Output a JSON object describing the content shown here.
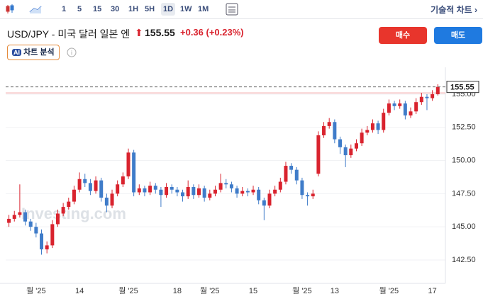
{
  "toolbar": {
    "intervals": [
      "1",
      "5",
      "15",
      "30",
      "1H",
      "5H",
      "1D",
      "1W",
      "1M"
    ],
    "selected": "1D",
    "right_link": "기술적 차트"
  },
  "header": {
    "symbol": "USD/JPY - 미국 달러 일본 엔",
    "price": 155.55,
    "change": "+0.36 (+0.23%)",
    "buy": "매수",
    "sell": "매도",
    "ai_badge": "AI",
    "ai_label": "차트 분석"
  },
  "chart_data": {
    "type": "candlestick",
    "watermark": "Investing.com",
    "up_color": "#d9232e",
    "down_color": "#3f7cc9",
    "open": [
      145.3,
      145.6,
      145.9,
      146.1,
      145.4,
      145.0,
      144.5,
      143.3,
      143.6,
      145.2,
      146.0,
      146.5,
      146.9,
      147.8,
      148.6,
      148.3,
      147.7,
      148.5,
      147.2,
      146.6,
      147.5,
      148.2,
      148.8,
      150.6,
      147.6,
      147.9,
      147.6,
      148.1,
      147.8,
      147.4,
      148.0,
      147.8,
      147.6,
      147.3,
      148.0,
      147.4,
      147.9,
      147.2,
      147.5,
      147.8,
      148.3,
      148.2,
      147.9,
      147.5,
      147.7,
      147.6,
      147.8,
      147.0,
      146.6,
      147.5,
      147.8,
      148.4,
      149.6,
      149.3,
      148.5,
      147.4,
      147.3,
      149.0,
      151.9,
      152.6,
      152.9,
      151.6,
      151.0,
      150.4,
      150.9,
      151.3,
      152.1,
      152.3,
      152.8,
      152.3,
      153.6,
      154.3,
      154.1,
      154.3,
      153.4,
      153.7,
      154.4,
      154.8,
      154.7,
      155.0
    ],
    "high": [
      145.9,
      146.2,
      148.2,
      146.3,
      145.6,
      145.3,
      144.8,
      143.9,
      145.5,
      146.3,
      146.8,
      147.2,
      148.1,
      149.1,
      149.0,
      148.6,
      148.8,
      148.7,
      147.5,
      147.8,
      148.5,
      149.1,
      150.9,
      150.8,
      148.2,
      148.1,
      148.4,
      148.3,
      148.0,
      148.3,
      148.2,
      148.0,
      147.8,
      148.5,
      148.2,
      148.2,
      148.1,
      147.8,
      148.1,
      149.0,
      148.6,
      148.4,
      148.1,
      148.0,
      147.9,
      148.1,
      148.0,
      147.2,
      147.8,
      148.1,
      148.7,
      149.9,
      149.8,
      149.5,
      148.7,
      147.6,
      147.8,
      152.2,
      152.9,
      153.2,
      153.1,
      151.8,
      151.2,
      151.2,
      151.6,
      152.4,
      152.6,
      153.1,
      153.0,
      153.9,
      154.6,
      154.5,
      154.6,
      154.5,
      154.0,
      154.7,
      155.1,
      155.0,
      155.3,
      155.75
    ],
    "low": [
      145.0,
      145.4,
      145.7,
      145.1,
      144.7,
      144.2,
      142.9,
      143.0,
      143.4,
      145.0,
      145.8,
      146.3,
      146.7,
      147.6,
      148.0,
      147.4,
      147.5,
      146.9,
      146.1,
      146.4,
      147.3,
      148.0,
      148.6,
      147.3,
      147.4,
      147.3,
      147.4,
      147.5,
      146.5,
      147.2,
      147.5,
      147.3,
      146.9,
      147.1,
      147.1,
      147.2,
      146.9,
      147.0,
      147.3,
      147.6,
      147.9,
      147.6,
      147.2,
      147.3,
      147.3,
      147.4,
      146.7,
      145.5,
      146.4,
      147.3,
      147.6,
      148.2,
      149.0,
      148.2,
      147.1,
      146.6,
      147.1,
      148.8,
      151.7,
      152.4,
      151.3,
      150.5,
      149.5,
      150.2,
      150.7,
      151.1,
      151.9,
      152.1,
      152.0,
      152.1,
      153.4,
      153.8,
      153.9,
      153.1,
      153.2,
      153.5,
      154.2,
      153.8,
      154.5,
      154.9
    ],
    "close": [
      145.6,
      145.9,
      146.1,
      145.4,
      145.0,
      144.5,
      143.3,
      143.6,
      145.2,
      146.0,
      146.5,
      146.9,
      147.8,
      148.6,
      148.3,
      147.7,
      148.5,
      147.2,
      146.6,
      147.5,
      148.2,
      148.8,
      150.6,
      147.6,
      147.9,
      147.6,
      148.1,
      147.8,
      147.4,
      148.0,
      147.8,
      147.6,
      147.3,
      148.0,
      147.4,
      147.9,
      147.2,
      147.5,
      147.8,
      148.3,
      148.2,
      147.9,
      147.5,
      147.7,
      147.6,
      147.8,
      147.0,
      146.6,
      147.5,
      147.8,
      148.4,
      149.6,
      149.3,
      148.5,
      147.4,
      147.3,
      147.5,
      151.9,
      152.6,
      152.9,
      151.6,
      151.0,
      150.4,
      150.9,
      151.3,
      152.1,
      152.3,
      152.8,
      152.3,
      153.6,
      154.3,
      154.1,
      154.3,
      153.4,
      153.7,
      154.4,
      154.8,
      154.7,
      155.0,
      155.55
    ],
    "xticks": [
      {
        "value": 5,
        "label": "월 '25"
      },
      {
        "value": 13,
        "label": "14"
      },
      {
        "value": 22,
        "label": "월 '25"
      },
      {
        "value": 31,
        "label": "18"
      },
      {
        "value": 37,
        "label": "월 '25"
      },
      {
        "value": 45,
        "label": "15"
      },
      {
        "value": 54,
        "label": "월 '25"
      },
      {
        "value": 60,
        "label": "13"
      },
      {
        "value": 70,
        "label": "월 '25"
      },
      {
        "value": 78,
        "label": "17"
      }
    ],
    "xlim": [
      -0.6,
      80.4
    ],
    "ylim": [
      141.27,
      156.76
    ],
    "yticks": [
      {
        "value": 142.5,
        "label": "142.50"
      },
      {
        "value": 145,
        "label": "145.00"
      },
      {
        "value": 147.5,
        "label": "147.50"
      },
      {
        "value": 150,
        "label": "150.00"
      },
      {
        "value": 152.5,
        "label": "152.50"
      },
      {
        "value": 155,
        "label": "155.00"
      }
    ],
    "last_price": 155.55,
    "prev_close_line": 155.1,
    "grid": true
  }
}
